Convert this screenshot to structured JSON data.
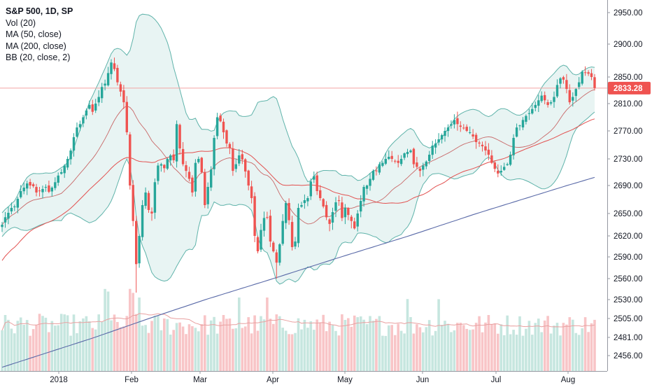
{
  "legend": {
    "symbol": "S&P 500, 1D, SP",
    "studies": [
      "Vol (20)",
      "MA (50, close)",
      "MA (200, close)",
      "BB (20, close, 2)"
    ]
  },
  "colors": {
    "up": "#26a69a",
    "down": "#ef5350",
    "vol_up": "#c6e6df",
    "vol_down": "#f8c5c7",
    "bb": "#5fb3aa",
    "bb_fill": "#e8f4f3",
    "ma50": "#e2504f",
    "ma200": "#5a6aa8",
    "vol_ma": "#e9a0a0",
    "price_line": "#f2a3a3",
    "last_badge": "#ef5350"
  },
  "price_axis_labels": [
    "2950.00",
    "2900.00",
    "2850.00",
    "2810.00",
    "2770.00",
    "2730.00",
    "2690.00",
    "2650.00",
    "2620.00",
    "2590.00",
    "2560.00",
    "2530.00",
    "2505.00",
    "2481.00",
    "2456.00"
  ],
  "time_axis_labels": [
    "2018",
    "Feb",
    "Mar",
    "Apr",
    "May",
    "Jun",
    "Jul",
    "Aug"
  ],
  "last_price_label": "2833.28",
  "chart_data": {
    "type": "candlestick",
    "title": "S&P 500, 1D, SP",
    "last_price": 2833.28,
    "y_axis_ticks": [
      2950.0,
      2900.0,
      2850.0,
      2810.0,
      2770.0,
      2730.0,
      2690.0,
      2650.0,
      2620.0,
      2590.0,
      2560.0,
      2530.0,
      2505.0,
      2481.0,
      2456.0
    ],
    "x_axis_ticks": [
      "2018",
      "Feb",
      "Mar",
      "Apr",
      "May",
      "Jun",
      "Jul",
      "Aug"
    ],
    "close": [
      2635,
      2645,
      2651,
      2658,
      2660,
      2671,
      2682,
      2687,
      2693,
      2690,
      2689,
      2680,
      2682,
      2685,
      2688,
      2681,
      2687,
      2695,
      2705,
      2710,
      2720,
      2730,
      2742,
      2761,
      2775,
      2780,
      2790,
      2800,
      2808,
      2798,
      2810,
      2820,
      2835,
      2840,
      2856,
      2872,
      2862,
      2842,
      2828,
      2812,
      2768,
      2690,
      2640,
      2580,
      2620,
      2662,
      2680,
      2655,
      2650,
      2695,
      2720,
      2722,
      2716,
      2730,
      2735,
      2728,
      2780,
      2745,
      2722,
      2712,
      2700,
      2680,
      2724,
      2730,
      2710,
      2662,
      2688,
      2714,
      2760,
      2790,
      2784,
      2768,
      2752,
      2746,
      2712,
      2722,
      2735,
      2729,
      2711,
      2690,
      2672,
      2620,
      2598,
      2628,
      2644,
      2645,
      2612,
      2598,
      2582,
      2608,
      2640,
      2665,
      2641,
      2604,
      2612,
      2658,
      2662,
      2669,
      2672,
      2696,
      2704,
      2682,
      2672,
      2660,
      2645,
      2636,
      2652,
      2666,
      2668,
      2644,
      2658,
      2648,
      2640,
      2630,
      2650,
      2668,
      2688,
      2690,
      2700,
      2712,
      2712,
      2722,
      2724,
      2730,
      2733,
      2730,
      2726,
      2724,
      2730,
      2738,
      2740,
      2742,
      2722,
      2718,
      2712,
      2720,
      2726,
      2736,
      2749,
      2752,
      2758,
      2764,
      2770,
      2775,
      2780,
      2786,
      2780,
      2776,
      2774,
      2770,
      2768,
      2762,
      2754,
      2752,
      2748,
      2742,
      2736,
      2724,
      2715,
      2708,
      2712,
      2718,
      2722,
      2736,
      2760,
      2775,
      2778,
      2786,
      2792,
      2796,
      2802,
      2808,
      2815,
      2822,
      2815,
      2808,
      2812,
      2820,
      2838,
      2848,
      2846,
      2832,
      2812,
      2820,
      2832,
      2842,
      2858,
      2856,
      2855,
      2850,
      2833.28
    ]
  }
}
